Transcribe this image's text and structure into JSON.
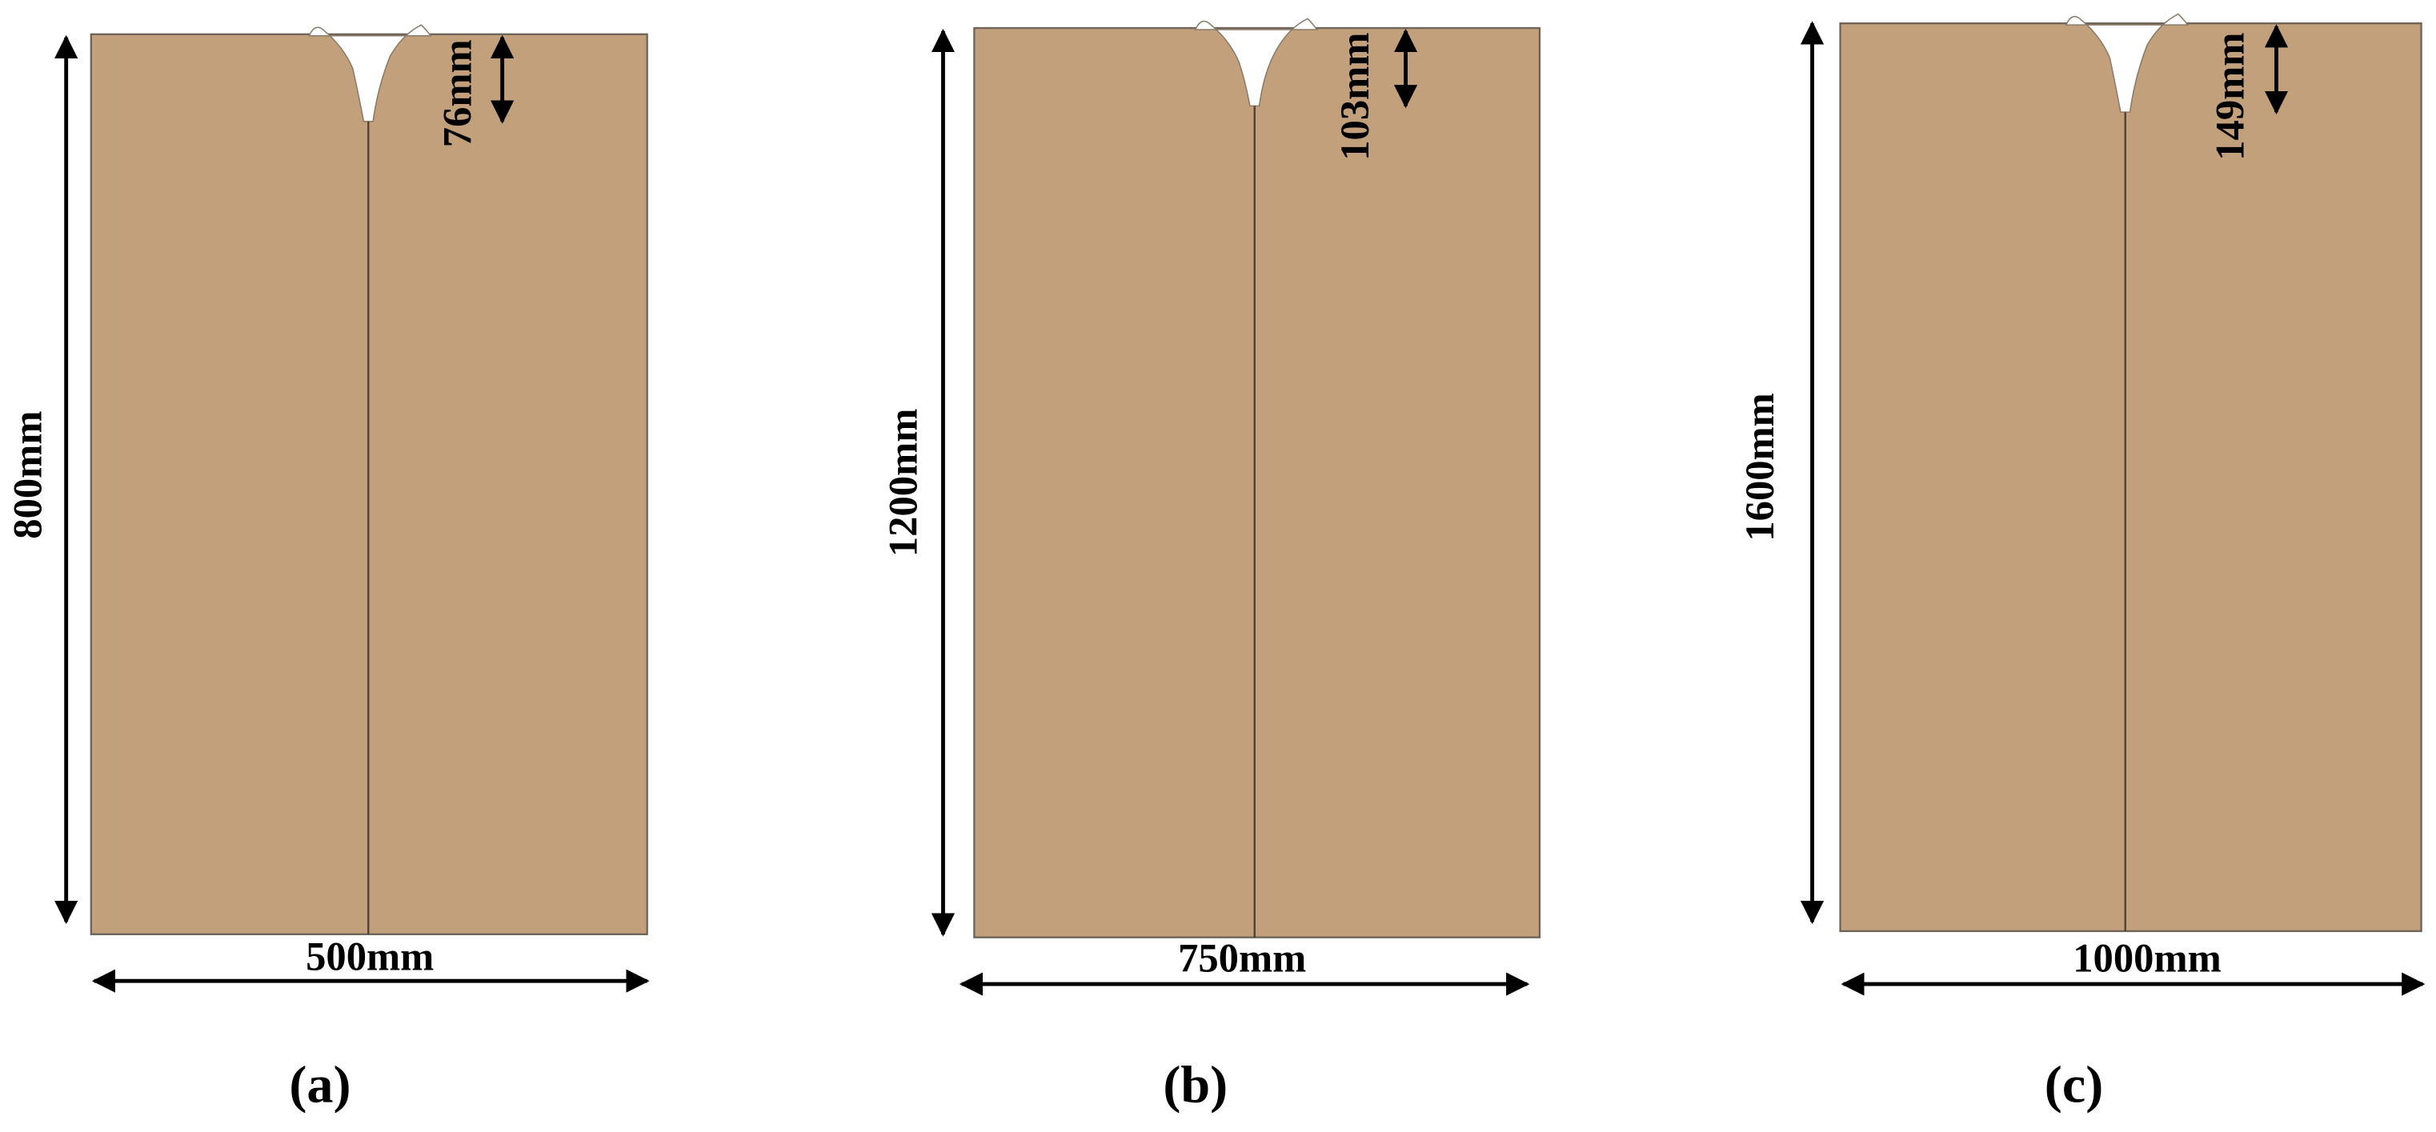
{
  "panels": [
    {
      "height": "800mm",
      "width": "500mm",
      "depth": "76mm",
      "caption": "(a)"
    },
    {
      "height": "1200mm",
      "width": "750mm",
      "depth": "103mm",
      "caption": "(b)"
    },
    {
      "height": "1600mm",
      "width": "1000mm",
      "depth": "149mm",
      "caption": "(c)"
    }
  ]
}
